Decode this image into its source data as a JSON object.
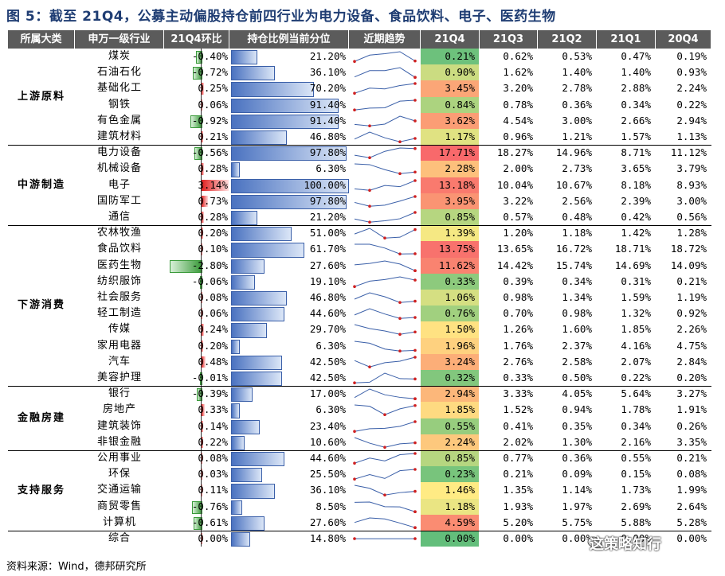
{
  "title": "图 5：截至 21Q4，公募主动偏股持仓前四行业为电力设备、食品饮料、电子、医药生物",
  "headers": [
    "所属大类",
    "申万一级行业",
    "21Q4环比",
    "持仓比例当前分位",
    "近期趋势",
    "21Q4",
    "21Q3",
    "21Q2",
    "21Q1",
    "20Q4"
  ],
  "footer": "资料来源：Wind，德邦研究所",
  "watermark": "这策略知行",
  "colors": {
    "header_bg": "#5b5b5b",
    "title": "#1f3d73",
    "pos_bar": "#e02020",
    "neg_bar": "#3a9a3a",
    "pct_bar": "#4a72c0"
  },
  "groups": [
    {
      "name": "上游原料",
      "rows": [
        0,
        5
      ]
    },
    {
      "name": "中游制造",
      "rows": [
        6,
        10
      ]
    },
    {
      "name": "下游消费",
      "rows": [
        11,
        20
      ]
    },
    {
      "name": "金融房建",
      "rows": [
        21,
        24
      ]
    },
    {
      "name": "支持服务",
      "rows": [
        25,
        29
      ]
    }
  ],
  "rows": [
    {
      "ind": "煤炭",
      "chg": -0.4,
      "chg_label": "-0.40%",
      "pct": 21.2,
      "pct_label": "21.20%",
      "q": [
        0.21,
        0.62,
        0.53,
        0.47,
        0.19
      ],
      "q_label": [
        "0.21%",
        "0.62%",
        "0.53%",
        "0.47%",
        "0.19%"
      ]
    },
    {
      "ind": "石油石化",
      "chg": -0.72,
      "chg_label": "-0.72%",
      "pct": 36.1,
      "pct_label": "36.10%",
      "q": [
        0.9,
        1.62,
        1.4,
        1.4,
        0.93
      ],
      "q_label": [
        "0.90%",
        "1.62%",
        "1.40%",
        "1.40%",
        "0.93%"
      ]
    },
    {
      "ind": "基础化工",
      "chg": 0.25,
      "chg_label": "0.25%",
      "pct": 70.2,
      "pct_label": "70.20%",
      "q": [
        3.45,
        3.2,
        2.78,
        2.88,
        2.24
      ],
      "q_label": [
        "3.45%",
        "3.20%",
        "2.78%",
        "2.88%",
        "2.24%"
      ]
    },
    {
      "ind": "钢铁",
      "chg": 0.06,
      "chg_label": "0.06%",
      "pct": 91.4,
      "pct_label": "91.40%",
      "q": [
        0.84,
        0.78,
        0.36,
        0.34,
        0.22
      ],
      "q_label": [
        "0.84%",
        "0.78%",
        "0.36%",
        "0.34%",
        "0.22%"
      ]
    },
    {
      "ind": "有色金属",
      "chg": -0.92,
      "chg_label": "-0.92%",
      "pct": 91.4,
      "pct_label": "91.40%",
      "q": [
        3.62,
        4.54,
        3.0,
        2.66,
        2.94
      ],
      "q_label": [
        "3.62%",
        "4.54%",
        "3.00%",
        "2.66%",
        "2.94%"
      ]
    },
    {
      "ind": "建筑材料",
      "chg": 0.21,
      "chg_label": "0.21%",
      "pct": 46.8,
      "pct_label": "46.80%",
      "q": [
        1.17,
        0.96,
        1.21,
        1.57,
        1.13
      ],
      "q_label": [
        "1.17%",
        "0.96%",
        "1.21%",
        "1.57%",
        "1.13%"
      ]
    },
    {
      "ind": "电力设备",
      "chg": -0.56,
      "chg_label": "-0.56%",
      "pct": 97.8,
      "pct_label": "97.80%",
      "q": [
        17.71,
        18.27,
        14.96,
        8.71,
        11.12
      ],
      "q_label": [
        "17.71%",
        "18.27%",
        "14.96%",
        "8.71%",
        "11.12%"
      ]
    },
    {
      "ind": "机械设备",
      "chg": 0.28,
      "chg_label": "0.28%",
      "pct": 6.3,
      "pct_label": "6.30%",
      "q": [
        2.28,
        2.0,
        2.73,
        3.65,
        3.79
      ],
      "q_label": [
        "2.28%",
        "2.00%",
        "2.73%",
        "3.65%",
        "3.79%"
      ]
    },
    {
      "ind": "电子",
      "chg": 3.14,
      "chg_label": "3.14%",
      "pct": 100.0,
      "pct_label": "100.00%",
      "q": [
        13.18,
        10.04,
        10.67,
        8.18,
        8.93
      ],
      "q_label": [
        "13.18%",
        "10.04%",
        "10.67%",
        "8.18%",
        "8.93%"
      ]
    },
    {
      "ind": "国防军工",
      "chg": 0.73,
      "chg_label": "0.73%",
      "pct": 97.8,
      "pct_label": "97.80%",
      "q": [
        3.95,
        3.22,
        2.56,
        2.39,
        3.0
      ],
      "q_label": [
        "3.95%",
        "3.22%",
        "2.56%",
        "2.39%",
        "3.00%"
      ]
    },
    {
      "ind": "通信",
      "chg": 0.28,
      "chg_label": "0.28%",
      "pct": 21.2,
      "pct_label": "21.20%",
      "q": [
        0.85,
        0.57,
        0.48,
        0.42,
        0.56
      ],
      "q_label": [
        "0.85%",
        "0.57%",
        "0.48%",
        "0.42%",
        "0.56%"
      ]
    },
    {
      "ind": "农林牧渔",
      "chg": 0.2,
      "chg_label": "0.20%",
      "pct": 51.0,
      "pct_label": "51.00%",
      "q": [
        1.39,
        1.2,
        1.18,
        1.42,
        1.28
      ],
      "q_label": [
        "1.39%",
        "1.20%",
        "1.18%",
        "1.42%",
        "1.28%"
      ]
    },
    {
      "ind": "食品饮料",
      "chg": 0.1,
      "chg_label": "0.10%",
      "pct": 61.7,
      "pct_label": "61.70%",
      "q": [
        13.75,
        13.65,
        16.72,
        18.71,
        18.72
      ],
      "q_label": [
        "13.75%",
        "13.65%",
        "16.72%",
        "18.71%",
        "18.72%"
      ]
    },
    {
      "ind": "医药生物",
      "chg": -2.8,
      "chg_label": "-2.80%",
      "pct": 27.6,
      "pct_label": "27.60%",
      "q": [
        11.62,
        14.42,
        15.74,
        14.69,
        14.09
      ],
      "q_label": [
        "11.62%",
        "14.42%",
        "15.74%",
        "14.69%",
        "14.09%"
      ]
    },
    {
      "ind": "纺织服饰",
      "chg": -0.06,
      "chg_label": "-0.06%",
      "pct": 19.1,
      "pct_label": "19.10%",
      "q": [
        0.33,
        0.39,
        0.34,
        0.31,
        0.21
      ],
      "q_label": [
        "0.33%",
        "0.39%",
        "0.34%",
        "0.31%",
        "0.21%"
      ]
    },
    {
      "ind": "社会服务",
      "chg": 0.08,
      "chg_label": "0.08%",
      "pct": 46.8,
      "pct_label": "46.80%",
      "q": [
        1.06,
        0.98,
        1.34,
        1.59,
        1.19
      ],
      "q_label": [
        "1.06%",
        "0.98%",
        "1.34%",
        "1.59%",
        "1.19%"
      ]
    },
    {
      "ind": "轻工制造",
      "chg": 0.06,
      "chg_label": "0.06%",
      "pct": 44.6,
      "pct_label": "44.60%",
      "q": [
        0.76,
        0.7,
        0.98,
        1.32,
        0.92
      ],
      "q_label": [
        "0.76%",
        "0.70%",
        "0.98%",
        "1.32%",
        "0.92%"
      ]
    },
    {
      "ind": "传媒",
      "chg": 0.24,
      "chg_label": "0.24%",
      "pct": 29.7,
      "pct_label": "29.70%",
      "q": [
        1.5,
        1.26,
        1.6,
        1.85,
        2.26
      ],
      "q_label": [
        "1.50%",
        "1.26%",
        "1.60%",
        "1.85%",
        "2.26%"
      ]
    },
    {
      "ind": "家用电器",
      "chg": 0.2,
      "chg_label": "0.20%",
      "pct": 6.3,
      "pct_label": "6.30%",
      "q": [
        1.96,
        1.76,
        2.37,
        4.16,
        4.75
      ],
      "q_label": [
        "1.96%",
        "1.76%",
        "2.37%",
        "4.16%",
        "4.75%"
      ]
    },
    {
      "ind": "汽车",
      "chg": 0.48,
      "chg_label": "0.48%",
      "pct": 42.5,
      "pct_label": "42.50%",
      "q": [
        3.24,
        2.76,
        2.58,
        2.07,
        2.84
      ],
      "q_label": [
        "3.24%",
        "2.76%",
        "2.58%",
        "2.07%",
        "2.84%"
      ]
    },
    {
      "ind": "美容护理",
      "chg": -0.01,
      "chg_label": "-0.01%",
      "pct": 42.5,
      "pct_label": "42.50%",
      "q": [
        0.32,
        0.33,
        0.5,
        0.22,
        0.2
      ],
      "q_label": [
        "0.32%",
        "0.33%",
        "0.50%",
        "0.22%",
        "0.20%"
      ]
    },
    {
      "ind": "银行",
      "chg": -0.39,
      "chg_label": "-0.39%",
      "pct": 17.0,
      "pct_label": "17.00%",
      "q": [
        2.94,
        3.33,
        4.05,
        5.64,
        3.27
      ],
      "q_label": [
        "2.94%",
        "3.33%",
        "4.05%",
        "5.64%",
        "3.27%"
      ]
    },
    {
      "ind": "房地产",
      "chg": 0.33,
      "chg_label": "0.33%",
      "pct": 6.3,
      "pct_label": "6.30%",
      "q": [
        1.85,
        1.52,
        0.94,
        1.78,
        1.91
      ],
      "q_label": [
        "1.85%",
        "1.52%",
        "0.94%",
        "1.78%",
        "1.91%"
      ]
    },
    {
      "ind": "建筑装饰",
      "chg": 0.14,
      "chg_label": "0.14%",
      "pct": 23.4,
      "pct_label": "23.40%",
      "q": [
        0.55,
        0.41,
        0.35,
        0.34,
        0.26
      ],
      "q_label": [
        "0.55%",
        "0.41%",
        "0.35%",
        "0.34%",
        "0.26%"
      ]
    },
    {
      "ind": "非银金融",
      "chg": 0.22,
      "chg_label": "0.22%",
      "pct": 10.6,
      "pct_label": "10.60%",
      "q": [
        2.24,
        2.02,
        1.3,
        2.16,
        3.35
      ],
      "q_label": [
        "2.24%",
        "2.02%",
        "1.30%",
        "2.16%",
        "3.35%"
      ]
    },
    {
      "ind": "公用事业",
      "chg": 0.08,
      "chg_label": "0.08%",
      "pct": 44.6,
      "pct_label": "44.60%",
      "q": [
        0.85,
        0.77,
        0.36,
        0.55,
        0.21
      ],
      "q_label": [
        "0.85%",
        "0.77%",
        "0.36%",
        "0.55%",
        "0.21%"
      ]
    },
    {
      "ind": "环保",
      "chg": 0.03,
      "chg_label": "0.03%",
      "pct": 25.5,
      "pct_label": "25.50%",
      "q": [
        0.23,
        0.21,
        0.09,
        0.15,
        0.08
      ],
      "q_label": [
        "0.23%",
        "0.21%",
        "0.09%",
        "0.15%",
        "0.08%"
      ]
    },
    {
      "ind": "交通运输",
      "chg": 0.11,
      "chg_label": "0.11%",
      "pct": 36.1,
      "pct_label": "36.10%",
      "q": [
        1.46,
        1.35,
        1.14,
        1.73,
        1.99
      ],
      "q_label": [
        "1.46%",
        "1.35%",
        "1.14%",
        "1.73%",
        "1.99%"
      ]
    },
    {
      "ind": "商贸零售",
      "chg": -0.76,
      "chg_label": "-0.76%",
      "pct": 8.5,
      "pct_label": "8.50%",
      "q": [
        1.18,
        1.93,
        1.97,
        2.69,
        2.64
      ],
      "q_label": [
        "1.18%",
        "1.93%",
        "1.97%",
        "2.69%",
        "2.64%"
      ]
    },
    {
      "ind": "计算机",
      "chg": -0.61,
      "chg_label": "-0.61%",
      "pct": 27.6,
      "pct_label": "27.60%",
      "q": [
        4.59,
        5.2,
        5.75,
        5.88,
        5.28
      ],
      "q_label": [
        "4.59%",
        "5.20%",
        "5.75%",
        "5.88%",
        "5.28%"
      ]
    },
    {
      "ind": "综合",
      "chg": 0.0,
      "chg_label": "0.00%",
      "pct": 14.8,
      "pct_label": "14.80%",
      "q": [
        0.0,
        0.0,
        0.0,
        0.0,
        0.0
      ],
      "q_label": [
        "0.00%",
        "0.00%",
        "0.00%",
        "0.00%",
        "0.00%"
      ]
    }
  ]
}
